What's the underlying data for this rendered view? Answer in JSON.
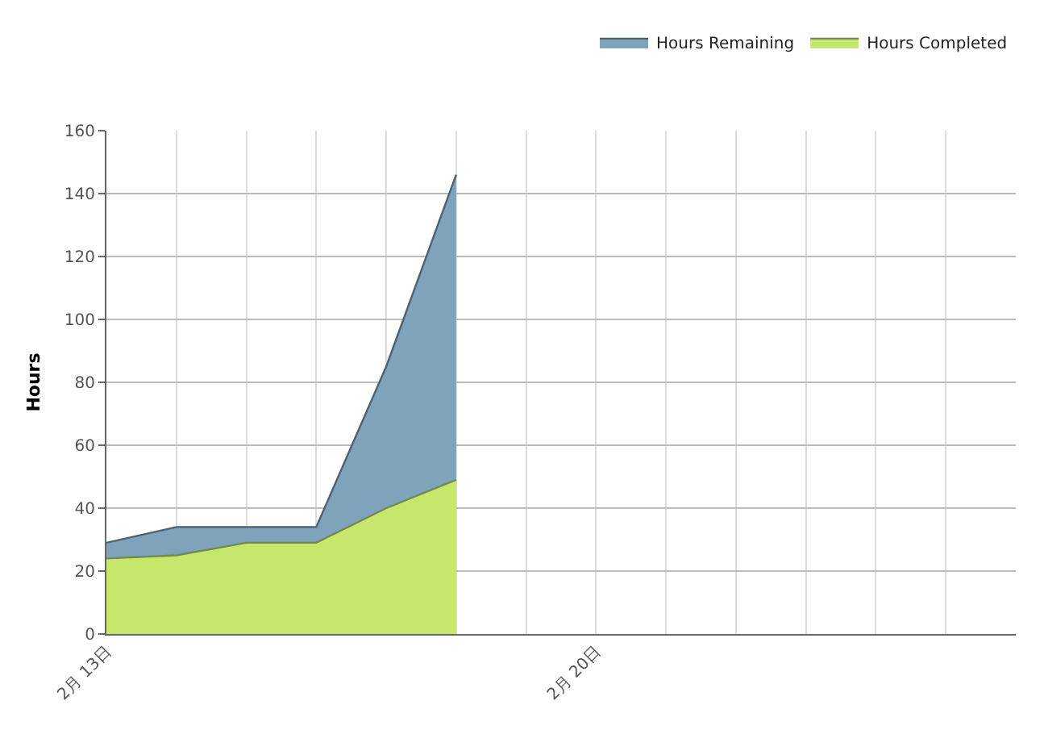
{
  "chart_data": {
    "type": "area",
    "stacked": true,
    "ylabel": "Hours",
    "x": [
      "--02-13",
      "--02-14",
      "--02-15",
      "--02-16",
      "--02-17",
      "--02-18"
    ],
    "series": [
      {
        "name": "Hours Completed",
        "color": "#c5e86c",
        "values": [
          24,
          25,
          29,
          29,
          40,
          49
        ]
      },
      {
        "name": "Hours Remaining",
        "color": "#7fa3bb",
        "values": [
          5,
          9,
          5,
          5,
          45,
          97
        ]
      }
    ],
    "xlim": [
      "--02-13",
      "--02-26"
    ],
    "xticks": [
      {
        "value": "--02-13",
        "label": "2月 13日"
      },
      {
        "value": "--02-14",
        "label": null
      },
      {
        "value": "--02-15",
        "label": null
      },
      {
        "value": "--02-16",
        "label": null
      },
      {
        "value": "--02-17",
        "label": null
      },
      {
        "value": "--02-18",
        "label": null
      },
      {
        "value": "--02-19",
        "label": null
      },
      {
        "value": "--02-20",
        "label": "2月 20日"
      },
      {
        "value": "--02-21",
        "label": null
      },
      {
        "value": "--02-22",
        "label": null
      },
      {
        "value": "--02-23",
        "label": null
      },
      {
        "value": "--02-24",
        "label": null
      },
      {
        "value": "--02-25",
        "label": null
      }
    ],
    "ylim": [
      0,
      160
    ],
    "yticks": [
      0,
      20,
      40,
      60,
      80,
      100,
      120,
      140,
      160
    ],
    "grid": true,
    "legend": "top right"
  }
}
